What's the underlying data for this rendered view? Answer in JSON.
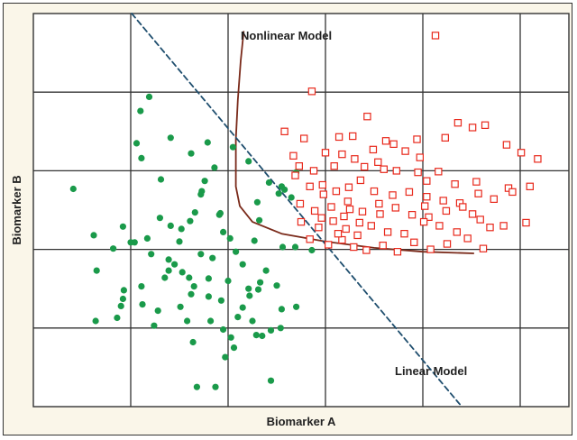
{
  "chart_data": {
    "type": "scatter",
    "title": "",
    "xlabel": "Biomarker A",
    "ylabel": "Biomarker B",
    "xlim": [
      0,
      5.5
    ],
    "ylim": [
      0,
      5
    ],
    "x_ticks_shown": false,
    "y_ticks_shown": false,
    "grid": true,
    "grid_x": [
      1,
      2,
      3,
      4,
      5
    ],
    "grid_y": [
      1,
      2,
      3,
      4
    ],
    "background": "#ffffff",
    "grid_color": "#333333",
    "series": [
      {
        "marker": "filled-circle",
        "color": "#1a9a4a",
        "points": [
          [
            0.41,
            2.77
          ],
          [
            1.11,
            3.16
          ],
          [
            1.19,
            3.94
          ],
          [
            1.1,
            3.76
          ],
          [
            1.06,
            3.35
          ],
          [
            1.41,
            3.42
          ],
          [
            1.62,
            3.22
          ],
          [
            1.79,
            3.36
          ],
          [
            1.86,
            3.04
          ],
          [
            2.05,
            3.3
          ],
          [
            2.21,
            3.12
          ],
          [
            2.55,
            2.8
          ],
          [
            2.7,
            2.98
          ],
          [
            2.42,
            2.85
          ],
          [
            1.31,
            2.89
          ],
          [
            1.76,
            2.87
          ],
          [
            1.73,
            2.74
          ],
          [
            1.66,
            2.47
          ],
          [
            1.52,
            2.26
          ],
          [
            1.3,
            2.4
          ],
          [
            1.04,
            2.09
          ],
          [
            1.17,
            2.14
          ],
          [
            1.21,
            1.94
          ],
          [
            1.39,
            1.87
          ],
          [
            1.5,
            2.1
          ],
          [
            1.39,
            1.73
          ],
          [
            1.53,
            1.71
          ],
          [
            1.6,
            1.64
          ],
          [
            1.62,
            1.43
          ],
          [
            1.8,
            1.63
          ],
          [
            1.72,
            1.94
          ],
          [
            1.84,
            1.89
          ],
          [
            1.95,
            2.22
          ],
          [
            2.02,
            2.14
          ],
          [
            1.91,
            2.44
          ],
          [
            2.08,
            1.97
          ],
          [
            2.15,
            1.81
          ],
          [
            2.0,
            1.6
          ],
          [
            2.22,
            1.41
          ],
          [
            2.31,
            1.49
          ],
          [
            2.39,
            1.73
          ],
          [
            2.5,
            1.54
          ],
          [
            2.55,
            1.24
          ],
          [
            2.54,
            1.0
          ],
          [
            2.21,
            1.5
          ],
          [
            2.15,
            1.26
          ],
          [
            0.62,
            2.18
          ],
          [
            0.82,
            2.01
          ],
          [
            0.65,
            1.73
          ],
          [
            0.92,
            2.29
          ],
          [
            1.0,
            2.09
          ],
          [
            0.93,
            1.48
          ],
          [
            0.64,
            1.09
          ],
          [
            0.86,
            1.13
          ],
          [
            0.9,
            1.28
          ],
          [
            1.11,
            1.53
          ],
          [
            1.12,
            1.3
          ],
          [
            1.24,
            1.03
          ],
          [
            1.28,
            1.22
          ],
          [
            1.35,
            1.64
          ],
          [
            1.51,
            1.27
          ],
          [
            1.58,
            1.09
          ],
          [
            1.65,
            1.53
          ],
          [
            1.8,
            1.4
          ],
          [
            1.93,
            1.35
          ],
          [
            1.82,
            1.09
          ],
          [
            1.95,
            0.98
          ],
          [
            2.1,
            1.14
          ],
          [
            2.25,
            1.09
          ],
          [
            2.35,
            0.9
          ],
          [
            2.03,
            0.88
          ],
          [
            2.06,
            0.75
          ],
          [
            1.97,
            0.63
          ],
          [
            1.64,
            0.82
          ],
          [
            2.44,
            0.97
          ],
          [
            2.44,
            0.33
          ],
          [
            1.68,
            0.25
          ],
          [
            1.87,
            0.25
          ],
          [
            2.29,
            0.91
          ],
          [
            2.86,
            1.99
          ],
          [
            2.69,
            2.03
          ],
          [
            2.32,
            2.37
          ],
          [
            2.27,
            2.11
          ],
          [
            1.41,
            2.3
          ],
          [
            1.61,
            2.36
          ],
          [
            1.45,
            1.81
          ],
          [
            1.92,
            2.46
          ],
          [
            2.3,
            2.6
          ],
          [
            2.56,
            2.03
          ],
          [
            2.65,
            2.66
          ],
          [
            1.72,
            2.7
          ],
          [
            2.58,
            2.76
          ],
          [
            2.33,
            1.58
          ],
          [
            2.7,
            1.27
          ],
          [
            0.92,
            1.37
          ],
          [
            2.52,
            2.71
          ]
        ]
      },
      {
        "marker": "open-square",
        "color": "#e8291c",
        "points": [
          [
            4.13,
            4.72
          ],
          [
            2.86,
            4.01
          ],
          [
            3.43,
            3.69
          ],
          [
            4.36,
            3.61
          ],
          [
            4.51,
            3.55
          ],
          [
            4.64,
            3.58
          ],
          [
            2.58,
            3.5
          ],
          [
            2.78,
            3.41
          ],
          [
            3.14,
            3.43
          ],
          [
            3.28,
            3.44
          ],
          [
            3.62,
            3.38
          ],
          [
            3.82,
            3.25
          ],
          [
            3.97,
            3.17
          ],
          [
            4.23,
            3.42
          ],
          [
            2.67,
            3.19
          ],
          [
            3.0,
            3.23
          ],
          [
            3.17,
            3.21
          ],
          [
            3.49,
            3.27
          ],
          [
            3.7,
            3.34
          ],
          [
            3.54,
            3.11
          ],
          [
            3.94,
            3.4
          ],
          [
            4.86,
            3.33
          ],
          [
            5.01,
            3.23
          ],
          [
            5.18,
            3.15
          ],
          [
            2.73,
            3.06
          ],
          [
            2.88,
            3.0
          ],
          [
            2.97,
            2.82
          ],
          [
            3.09,
            3.06
          ],
          [
            3.3,
            3.15
          ],
          [
            3.4,
            3.05
          ],
          [
            3.6,
            3.02
          ],
          [
            3.73,
            3.0
          ],
          [
            3.95,
            2.98
          ],
          [
            4.04,
            2.87
          ],
          [
            4.16,
            2.99
          ],
          [
            4.33,
            2.83
          ],
          [
            4.55,
            2.86
          ],
          [
            4.88,
            2.78
          ],
          [
            5.1,
            2.8
          ],
          [
            2.69,
            2.94
          ],
          [
            2.84,
            2.8
          ],
          [
            2.98,
            2.7
          ],
          [
            3.11,
            2.74
          ],
          [
            3.24,
            2.79
          ],
          [
            3.36,
            2.88
          ],
          [
            3.5,
            2.74
          ],
          [
            3.69,
            2.69
          ],
          [
            3.86,
            2.73
          ],
          [
            4.04,
            2.67
          ],
          [
            4.21,
            2.62
          ],
          [
            4.38,
            2.59
          ],
          [
            4.57,
            2.71
          ],
          [
            4.73,
            2.64
          ],
          [
            4.92,
            2.73
          ],
          [
            2.74,
            2.58
          ],
          [
            2.89,
            2.49
          ],
          [
            3.06,
            2.54
          ],
          [
            3.23,
            2.61
          ],
          [
            3.38,
            2.48
          ],
          [
            3.56,
            2.45
          ],
          [
            3.72,
            2.53
          ],
          [
            3.89,
            2.44
          ],
          [
            4.06,
            2.41
          ],
          [
            4.24,
            2.49
          ],
          [
            4.41,
            2.54
          ],
          [
            4.59,
            2.38
          ],
          [
            4.83,
            2.3
          ],
          [
            5.06,
            2.34
          ],
          [
            2.75,
            2.35
          ],
          [
            2.93,
            2.28
          ],
          [
            3.08,
            2.36
          ],
          [
            3.21,
            2.26
          ],
          [
            3.33,
            2.18
          ],
          [
            3.47,
            2.3
          ],
          [
            3.64,
            2.22
          ],
          [
            3.81,
            2.2
          ],
          [
            4.01,
            2.35
          ],
          [
            4.17,
            2.3
          ],
          [
            4.35,
            2.22
          ],
          [
            4.51,
            2.45
          ],
          [
            4.69,
            2.28
          ],
          [
            2.84,
            2.13
          ],
          [
            3.03,
            2.06
          ],
          [
            3.17,
            2.12
          ],
          [
            3.29,
            2.03
          ],
          [
            3.42,
            1.99
          ],
          [
            3.59,
            2.05
          ],
          [
            3.74,
            1.97
          ],
          [
            3.91,
            2.09
          ],
          [
            4.08,
            2.0
          ],
          [
            4.25,
            2.07
          ],
          [
            4.46,
            2.14
          ],
          [
            4.62,
            2.01
          ],
          [
            3.55,
            2.58
          ],
          [
            3.19,
            2.42
          ],
          [
            2.96,
            2.4
          ],
          [
            3.35,
            2.34
          ],
          [
            3.13,
            2.2
          ],
          [
            4.02,
            2.55
          ],
          [
            3.25,
            2.51
          ]
        ]
      }
    ],
    "boundaries": [
      {
        "name": "Nonlinear Model",
        "style": "solid",
        "color": "#7a2a1a",
        "points": [
          [
            2.16,
            4.77
          ],
          [
            2.13,
            4.4
          ],
          [
            2.1,
            3.9
          ],
          [
            2.08,
            3.4
          ],
          [
            2.08,
            2.8
          ],
          [
            2.12,
            2.55
          ],
          [
            2.25,
            2.35
          ],
          [
            2.55,
            2.2
          ],
          [
            3.0,
            2.1
          ],
          [
            3.5,
            2.02
          ],
          [
            4.0,
            1.97
          ],
          [
            4.52,
            1.95
          ]
        ]
      },
      {
        "name": "Linear Model",
        "style": "dashed",
        "color": "#1f4e6e",
        "points": [
          [
            1.01,
            5.0
          ],
          [
            4.4,
            0.0
          ]
        ]
      }
    ]
  },
  "annotations": {
    "nonlinear": "Nonlinear Model",
    "linear": "Linear Model"
  }
}
